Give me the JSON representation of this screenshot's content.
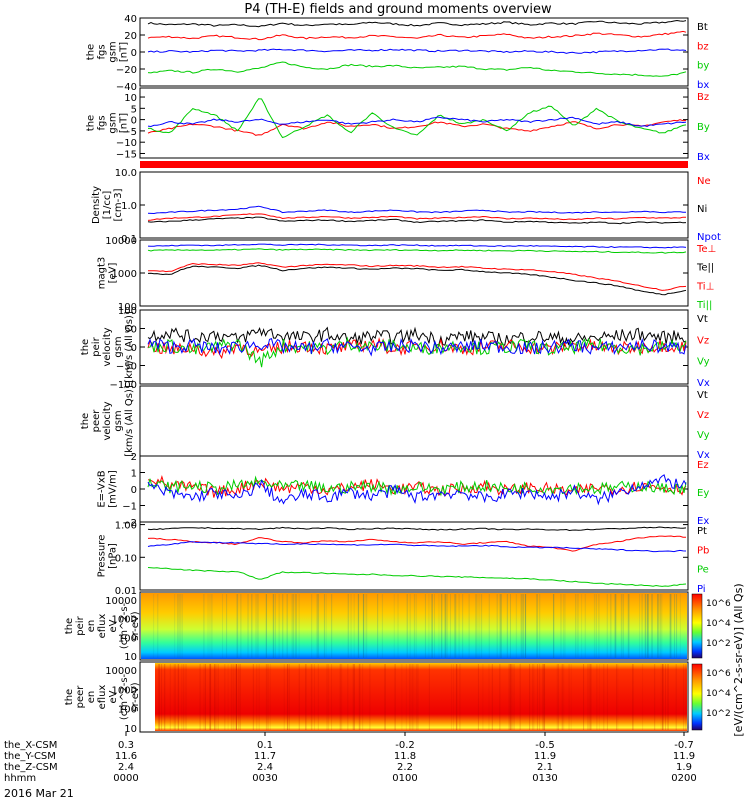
{
  "title": "P4 (TH-E) fields and ground moments overview",
  "date_label": "2016 Mar 21",
  "chart_data": [
    {
      "type": "line",
      "ylabel": [
        "the",
        "fgs",
        "gsm",
        "[nT]"
      ],
      "ylim": [
        -40,
        40
      ],
      "yticks": [
        "40",
        "20",
        "0",
        "−20",
        "−40"
      ],
      "legend": [
        "Bt",
        "bz",
        "by",
        "bx"
      ],
      "series": [
        {
          "name": "Bt",
          "color": "#000000",
          "values": [
            34,
            32,
            33,
            31,
            32,
            30,
            34,
            31,
            33,
            32,
            35,
            33,
            31,
            34,
            32,
            33,
            35,
            32,
            34,
            33,
            36,
            34,
            33,
            35,
            37
          ]
        },
        {
          "name": "bz",
          "color": "#ff0000",
          "values": [
            17,
            18,
            16,
            19,
            17,
            15,
            20,
            16,
            18,
            17,
            19,
            18,
            16,
            20,
            17,
            19,
            21,
            16,
            18,
            19,
            22,
            20,
            18,
            21,
            24
          ]
        },
        {
          "name": "by",
          "color": "#00cc00",
          "values": [
            -25,
            -22,
            -24,
            -20,
            -23,
            -19,
            -12,
            -18,
            -20,
            -15,
            -17,
            -16,
            -19,
            -18,
            -17,
            -20,
            -21,
            -18,
            -22,
            -23,
            -25,
            -26,
            -27,
            -29,
            -24
          ]
        },
        {
          "name": "bx",
          "color": "#0000ff",
          "values": [
            0,
            1,
            0,
            2,
            1,
            2,
            3,
            2,
            1,
            2,
            2,
            3,
            2,
            1,
            2,
            1,
            0,
            1,
            0,
            -1,
            0,
            1,
            2,
            3,
            2
          ]
        }
      ]
    },
    {
      "type": "line",
      "ylabel": [
        "the",
        "fgs",
        "gsm",
        "[nT]"
      ],
      "ylim": [
        -17,
        14
      ],
      "yticks": [
        "10",
        "5",
        "0",
        "−5",
        "−10",
        "−15"
      ],
      "legend": [
        "Bz",
        "By",
        "Bx"
      ],
      "series": [
        {
          "name": "Bz",
          "color": "#ff0000",
          "values": [
            -6,
            -4,
            -2,
            -3,
            -5,
            -7,
            -2,
            -4,
            -1,
            -3,
            -2,
            -4,
            -3,
            -1,
            -3,
            -2,
            -4,
            -5,
            -3,
            -1,
            -4,
            -2,
            -3,
            -1,
            0
          ]
        },
        {
          "name": "By",
          "color": "#00cc00",
          "values": [
            -4,
            -6,
            5,
            2,
            -5,
            10,
            -8,
            -3,
            2,
            -6,
            3,
            -4,
            -7,
            2,
            -2,
            0,
            -5,
            3,
            6,
            -3,
            5,
            -1,
            -4,
            -6,
            -2
          ]
        },
        {
          "name": "Bx",
          "color": "#0000ff",
          "values": [
            -3,
            -1,
            -2,
            0,
            -1,
            0,
            -2,
            -1,
            0,
            -2,
            -1,
            0,
            -1,
            1,
            0,
            -1,
            0,
            -1,
            0,
            1,
            -2,
            -1,
            -3,
            -2,
            -1
          ]
        }
      ]
    },
    {
      "type": "line",
      "log": true,
      "ylabel": [
        "Density",
        "[1/cc]",
        "[cm-3]"
      ],
      "ylim": [
        0.1,
        10
      ],
      "yticks": [
        "10.0",
        "1.0",
        "0.1"
      ],
      "legend": [
        "Ne",
        "Ni",
        "Npot"
      ],
      "series": [
        {
          "name": "Npot",
          "color": "#0000ff",
          "values": [
            0.55,
            0.6,
            0.65,
            0.7,
            0.75,
            0.9,
            0.6,
            0.65,
            0.7,
            0.6,
            0.65,
            0.7,
            0.62,
            0.6,
            0.65,
            0.7,
            0.6,
            0.62,
            0.6,
            0.58,
            0.62,
            0.6,
            0.65,
            0.6,
            0.62
          ]
        },
        {
          "name": "Ne",
          "color": "#ff0000",
          "values": [
            0.35,
            0.4,
            0.42,
            0.45,
            0.5,
            0.55,
            0.4,
            0.42,
            0.45,
            0.4,
            0.42,
            0.45,
            0.38,
            0.4,
            0.42,
            0.45,
            0.38,
            0.4,
            0.38,
            0.36,
            0.4,
            0.38,
            0.42,
            0.4,
            0.42
          ]
        },
        {
          "name": "Ni",
          "color": "#000000",
          "values": [
            0.3,
            0.32,
            0.35,
            0.38,
            0.4,
            0.42,
            0.32,
            0.34,
            0.35,
            0.32,
            0.34,
            0.36,
            0.3,
            0.32,
            0.33,
            0.35,
            0.3,
            0.32,
            0.3,
            0.28,
            0.3,
            0.28,
            0.3,
            0.29,
            0.3
          ]
        }
      ]
    },
    {
      "type": "line",
      "log": true,
      "ylabel": [
        "magt3",
        "[eV]"
      ],
      "ylim": [
        100,
        10000
      ],
      "yticks": [
        "10000",
        "1000",
        "100"
      ],
      "legend": [
        "Te⊥",
        "Te||",
        "Ti⊥",
        "Ti||"
      ],
      "series": [
        {
          "name": "Te⊥",
          "color": "#ff0000",
          "values": [
            1200,
            1100,
            1900,
            1800,
            1700,
            2000,
            1500,
            1700,
            1800,
            1750,
            1600,
            1700,
            1650,
            1500,
            1550,
            1400,
            1300,
            1250,
            1100,
            900,
            700,
            550,
            400,
            300,
            400
          ]
        },
        {
          "name": "Te||",
          "color": "#000000",
          "values": [
            1000,
            900,
            1600,
            1500,
            1400,
            1700,
            1200,
            1400,
            1500,
            1400,
            1300,
            1400,
            1350,
            1200,
            1250,
            1100,
            1000,
            900,
            750,
            600,
            500,
            400,
            280,
            220,
            300
          ]
        },
        {
          "name": "Ti⊥",
          "color": "#0000ff",
          "values": [
            6500,
            6700,
            7000,
            6800,
            7200,
            7500,
            7000,
            7300,
            7200,
            7000,
            6800,
            7100,
            6900,
            6700,
            6800,
            6600,
            6500,
            6700,
            6400,
            6300,
            6200,
            6100,
            6000,
            5900,
            6100
          ]
        },
        {
          "name": "Ti||",
          "color": "#00cc00",
          "values": [
            4800,
            4900,
            5000,
            4900,
            5100,
            5300,
            5000,
            5200,
            5100,
            5000,
            4900,
            5000,
            4900,
            4800,
            4900,
            4800,
            4700,
            4800,
            4600,
            4500,
            4400,
            4300,
            4200,
            4100,
            4300
          ]
        }
      ]
    },
    {
      "type": "line",
      "ylabel": [
        "the",
        "peir",
        "velocity",
        "gsm",
        "[km/s (All Qs)]"
      ],
      "ylim": [
        -100,
        100
      ],
      "yticks": [
        "100",
        "50",
        "0",
        "−50",
        "−100"
      ],
      "legend": [
        "Vt",
        "Vz",
        "Vy",
        "Vx"
      ],
      "series": [
        {
          "name": "Vt",
          "color": "#000000",
          "values": [
            30,
            40,
            25,
            35,
            20,
            45,
            30,
            25,
            35,
            20,
            30,
            25,
            35,
            20,
            30,
            25,
            20,
            30,
            25,
            20,
            25,
            30,
            35,
            25,
            30
          ]
        },
        {
          "name": "Vz",
          "color": "#ff0000",
          "values": [
            5,
            -10,
            0,
            -20,
            5,
            -15,
            0,
            5,
            -5,
            0,
            10,
            -5,
            0,
            5,
            -5,
            0,
            5,
            0,
            -5,
            5,
            0,
            -5,
            0,
            5,
            0
          ]
        },
        {
          "name": "Vy",
          "color": "#00cc00",
          "values": [
            0,
            5,
            -10,
            0,
            10,
            -40,
            5,
            0,
            -5,
            10,
            0,
            5,
            -5,
            0,
            5,
            -5,
            0,
            5,
            -10,
            0,
            5,
            0,
            -5,
            0,
            5
          ]
        },
        {
          "name": "Vx",
          "color": "#0000ff",
          "values": [
            10,
            0,
            5,
            -5,
            0,
            10,
            0,
            -5,
            5,
            0,
            -5,
            0,
            5,
            -5,
            0,
            5,
            0,
            -5,
            0,
            5,
            -5,
            0,
            5,
            0,
            -5
          ]
        }
      ]
    },
    {
      "type": "line",
      "ylabel": [
        "the",
        "peer",
        "velocity",
        "gsm",
        "[km/s (All Qs)]"
      ],
      "ylim": [
        -100,
        100
      ],
      "yticks": [],
      "legend": [
        "Vt",
        "Vz",
        "Vy",
        "Vx"
      ],
      "series": []
    },
    {
      "type": "line",
      "ylabel": [
        "E=-VxB",
        "[mV/m]"
      ],
      "ylim": [
        -2,
        2
      ],
      "yticks": [
        "2",
        "1",
        "0",
        "−1",
        "−2"
      ],
      "legend": [
        "Ez",
        "Ey",
        "Ex"
      ],
      "series": [
        {
          "name": "Ez",
          "color": "#ff0000",
          "values": [
            0.8,
            0.2,
            0.1,
            -0.2,
            0.0,
            0.5,
            0.0,
            0.2,
            -0.1,
            0.1,
            0.3,
            0.0,
            0.1,
            -0.1,
            0.0,
            0.2,
            -0.1,
            0.1,
            0.0,
            -0.2,
            0.1,
            0.0,
            0.2,
            0.1,
            0.0
          ]
        },
        {
          "name": "Ey",
          "color": "#00cc00",
          "values": [
            0.3,
            0.1,
            0.2,
            0.0,
            0.2,
            0.4,
            0.1,
            0.2,
            0.0,
            0.1,
            0.2,
            0.0,
            0.1,
            0.0,
            0.1,
            0.2,
            0.0,
            0.1,
            0.0,
            0.1,
            0.0,
            0.1,
            0.2,
            0.0,
            0.1
          ]
        },
        {
          "name": "Ex",
          "color": "#0000ff",
          "values": [
            0.2,
            -0.3,
            -0.5,
            -0.2,
            -0.6,
            0.3,
            -0.8,
            -0.3,
            -0.5,
            -0.2,
            -0.4,
            -0.1,
            -0.5,
            -0.3,
            -0.2,
            -0.6,
            -0.3,
            -0.2,
            -0.5,
            -0.1,
            -0.7,
            -0.2,
            0.3,
            0.5,
            0.2
          ]
        }
      ]
    },
    {
      "type": "line",
      "log": true,
      "ylabel": [
        "Pressure",
        "[nPa]"
      ],
      "ylim": [
        0.01,
        1.2
      ],
      "yticks": [
        "1.00",
        "0.10",
        "0.01"
      ],
      "legend": [
        "Pt",
        "Pb",
        "Pe",
        "Pi"
      ],
      "series": [
        {
          "name": "Pt",
          "color": "#000000",
          "values": [
            0.7,
            0.75,
            0.8,
            0.78,
            0.75,
            0.72,
            0.8,
            0.75,
            0.78,
            0.72,
            0.75,
            0.78,
            0.72,
            0.7,
            0.72,
            0.75,
            0.7,
            0.72,
            0.7,
            0.68,
            0.72,
            0.75,
            0.8,
            0.82,
            0.78
          ]
        },
        {
          "name": "Pb",
          "color": "#ff0000",
          "values": [
            0.38,
            0.35,
            0.3,
            0.28,
            0.25,
            0.4,
            0.3,
            0.28,
            0.32,
            0.3,
            0.35,
            0.3,
            0.28,
            0.3,
            0.25,
            0.28,
            0.3,
            0.22,
            0.2,
            0.15,
            0.25,
            0.3,
            0.4,
            0.45,
            0.42
          ]
        },
        {
          "name": "Pi",
          "color": "#0000ff",
          "values": [
            0.22,
            0.25,
            0.3,
            0.28,
            0.28,
            0.26,
            0.25,
            0.26,
            0.25,
            0.24,
            0.24,
            0.25,
            0.23,
            0.22,
            0.22,
            0.23,
            0.21,
            0.2,
            0.2,
            0.19,
            0.18,
            0.17,
            0.16,
            0.15,
            0.16
          ]
        },
        {
          "name": "Pe",
          "color": "#00cc00",
          "values": [
            0.05,
            0.045,
            0.04,
            0.038,
            0.036,
            0.02,
            0.035,
            0.034,
            0.032,
            0.03,
            0.03,
            0.028,
            0.027,
            0.026,
            0.025,
            0.024,
            0.023,
            0.022,
            0.02,
            0.018,
            0.016,
            0.015,
            0.014,
            0.013,
            0.015
          ]
        }
      ]
    },
    {
      "type": "heatmap",
      "ylabel": [
        "the",
        "peir",
        "en",
        "eflux",
        "eV",
        "(cm^2-s-",
        "sr-eV)"
      ],
      "yticks": [
        "10000",
        "1000",
        "100",
        "10"
      ],
      "colorbar_ticks": [
        "10^6",
        "10^4",
        "10^2"
      ]
    },
    {
      "type": "heatmap",
      "ylabel": [
        "the",
        "peer",
        "en",
        "eflux",
        "eV",
        "(cm^2-s-",
        "sr-eV)"
      ],
      "yticks": [
        "10000",
        "1000",
        "100",
        "10"
      ],
      "colorbar_ticks": [
        "10^6",
        "10^4",
        "10^2"
      ]
    }
  ],
  "colorbar_label": "[eV/(cm^2-s-sr-eV)] (All Qs)",
  "time_axis": {
    "row_labels": [
      "the_X-CSM",
      "the_Y-CSM",
      "the_Z-CSM",
      "hhmm"
    ],
    "columns": [
      [
        "0.3",
        "11.6",
        "2.4",
        "0000"
      ],
      [
        "0.1",
        "11.7",
        "2.4",
        "0030"
      ],
      [
        "-0.2",
        "11.8",
        "2.2",
        "0100"
      ],
      [
        "-0.5",
        "11.9",
        "2.1",
        "0130"
      ],
      [
        "-0.7",
        "11.9",
        "1.9",
        "0200"
      ]
    ]
  }
}
